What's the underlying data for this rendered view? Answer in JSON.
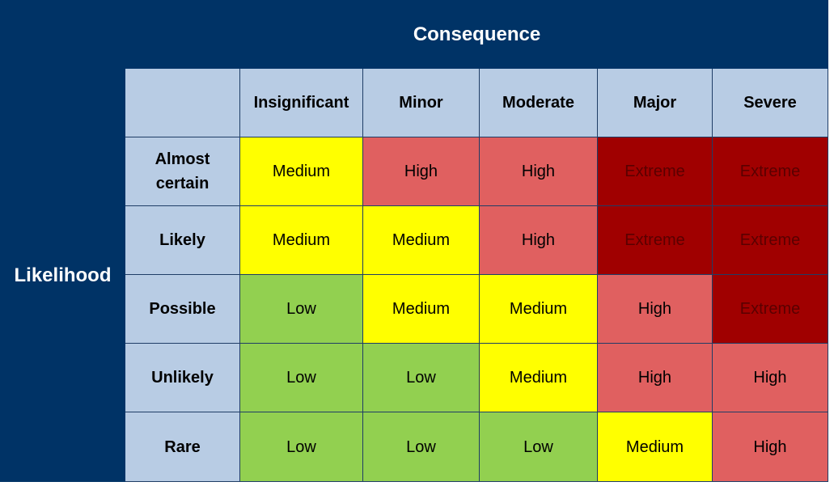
{
  "header": {
    "title": "Consequence",
    "side_label": "Likelihood"
  },
  "table": {
    "columns": [
      "Insignificant",
      "Minor",
      "Moderate",
      "Major",
      "Severe"
    ],
    "rows": [
      {
        "label": "Almost certain",
        "cells": [
          "Medium",
          "High",
          "High",
          "Extreme",
          "Extreme"
        ]
      },
      {
        "label": "Likely",
        "cells": [
          "Medium",
          "Medium",
          "High",
          "Extreme",
          "Extreme"
        ]
      },
      {
        "label": "Possible",
        "cells": [
          "Low",
          "Medium",
          "Medium",
          "High",
          "Extreme"
        ]
      },
      {
        "label": "Unlikely",
        "cells": [
          "Low",
          "Low",
          "Medium",
          "High",
          "High"
        ]
      },
      {
        "label": "Rare",
        "cells": [
          "Low",
          "Low",
          "Low",
          "Medium",
          "High"
        ]
      }
    ]
  },
  "rating_styles": {
    "Low": {
      "fill": "#92d050",
      "text": "#000000"
    },
    "Medium": {
      "fill": "#ffff00",
      "text": "#000000"
    },
    "High": {
      "fill": "#e06060",
      "text": "#000000"
    },
    "Extreme": {
      "fill": "#a00000",
      "text": "#5a0000"
    }
  }
}
